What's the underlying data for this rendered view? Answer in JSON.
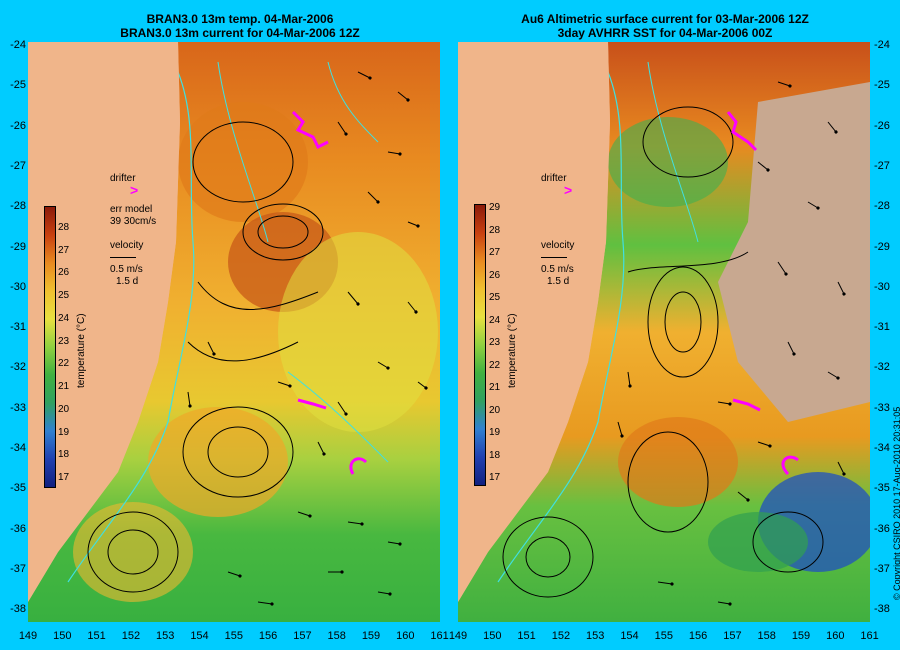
{
  "left_panel": {
    "title_line1": "BRAN3.0 13m temp. 04-Mar-2006",
    "title_line2": "BRAN3.0 13m current for 04-Mar-2006 12Z",
    "drifter_label": "drifter",
    "drifter_symbol": ">",
    "err_model_label": "err model",
    "err_model_value": "39 30cm/s",
    "velocity_label": "velocity",
    "velocity_value": "0.5 m/s",
    "velocity_time": "1.5 d",
    "colorbar_title": "temperature (°C)",
    "colorbar_ticks": [
      "28",
      "27",
      "26",
      "25",
      "24",
      "23",
      "22",
      "21",
      "20",
      "19",
      "18",
      "17"
    ]
  },
  "right_panel": {
    "title_line1": "Au6 Altimetric surface current for 03-Mar-2006 12Z",
    "title_line2": "3day AVHRR SST for 04-Mar-2006 00Z",
    "drifter_label": "drifter",
    "drifter_symbol": ">",
    "velocity_label": "velocity",
    "velocity_value": "0.5 m/s",
    "velocity_time": "1.5 d",
    "colorbar_title": "temperature (°C)",
    "colorbar_ticks": [
      "29",
      "28",
      "27",
      "26",
      "25",
      "24",
      "23",
      "22",
      "21",
      "20",
      "19",
      "18",
      "17"
    ]
  },
  "lat_ticks": [
    "-24",
    "-25",
    "-26",
    "-27",
    "-28",
    "-29",
    "-30",
    "-31",
    "-32",
    "-33",
    "-34",
    "-35",
    "-36",
    "-37",
    "-38"
  ],
  "lon_ticks_left": [
    "149",
    "150",
    "151",
    "152",
    "153",
    "154",
    "155",
    "156",
    "157",
    "158",
    "159",
    "160",
    "161"
  ],
  "lon_ticks_right": [
    "149",
    "150",
    "151",
    "152",
    "153",
    "154",
    "155",
    "156",
    "157",
    "158",
    "159",
    "160",
    "161"
  ],
  "copyright": "© Copyright CSIRO 2010  17-Aug-2010 20:31:05",
  "colors": {
    "background": "#00ccff",
    "land": "#f0b58a",
    "drifter": "#ff00ff",
    "contour": "#40e0e0",
    "cloud": "#c8a890"
  }
}
